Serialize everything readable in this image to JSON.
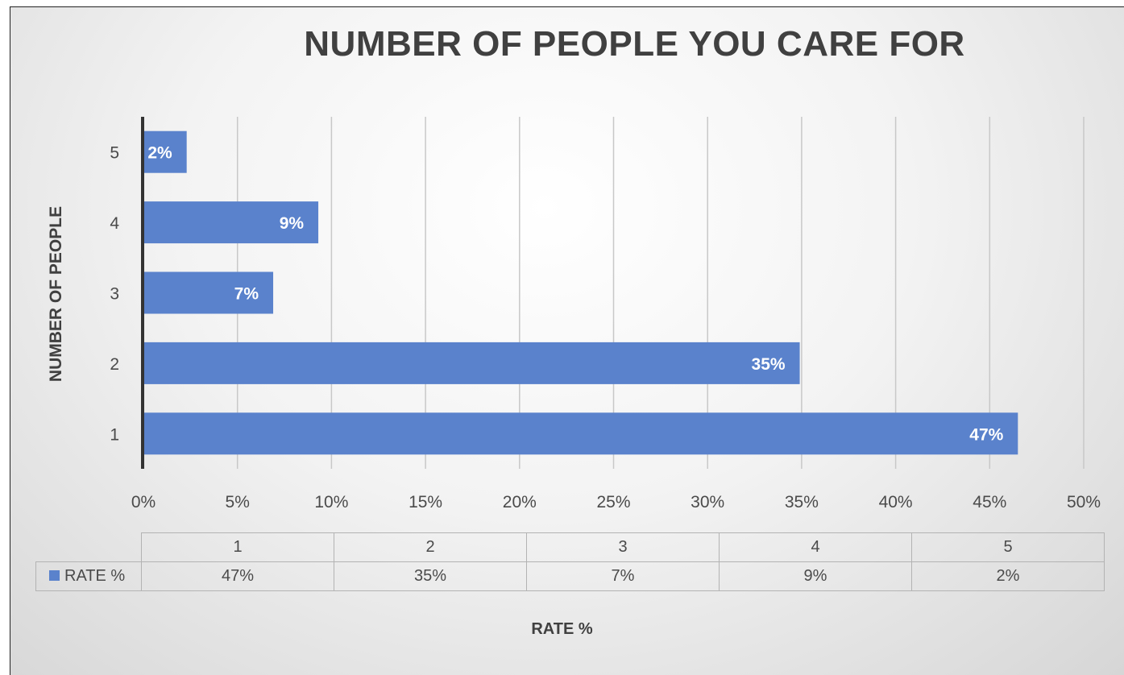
{
  "colors": {
    "bar": "#5a82cc",
    "axis": "#333333",
    "grid": "#c8c8c8"
  },
  "chart_data": {
    "type": "bar",
    "orientation": "horizontal",
    "title": "NUMBER OF PEOPLE YOU CARE FOR",
    "xlabel": "RATE %",
    "ylabel": "NUMBER OF PEOPLE",
    "categories": [
      "1",
      "2",
      "3",
      "4",
      "5"
    ],
    "series": [
      {
        "name": "RATE %",
        "values": [
          46.5,
          34.9,
          6.9,
          9.3,
          2.3
        ],
        "labels": [
          "47%",
          "35%",
          "7%",
          "9%",
          "2%"
        ]
      }
    ],
    "xlim": [
      0,
      50
    ],
    "xticks": [
      "0%",
      "5%",
      "10%",
      "15%",
      "20%",
      "25%",
      "30%",
      "35%",
      "40%",
      "45%",
      "50%"
    ],
    "grid": true,
    "data_table": {
      "header": [
        "1",
        "2",
        "3",
        "4",
        "5"
      ],
      "row_label": "RATE %",
      "row_values": [
        "47%",
        "35%",
        "7%",
        "9%",
        "2%"
      ]
    }
  }
}
